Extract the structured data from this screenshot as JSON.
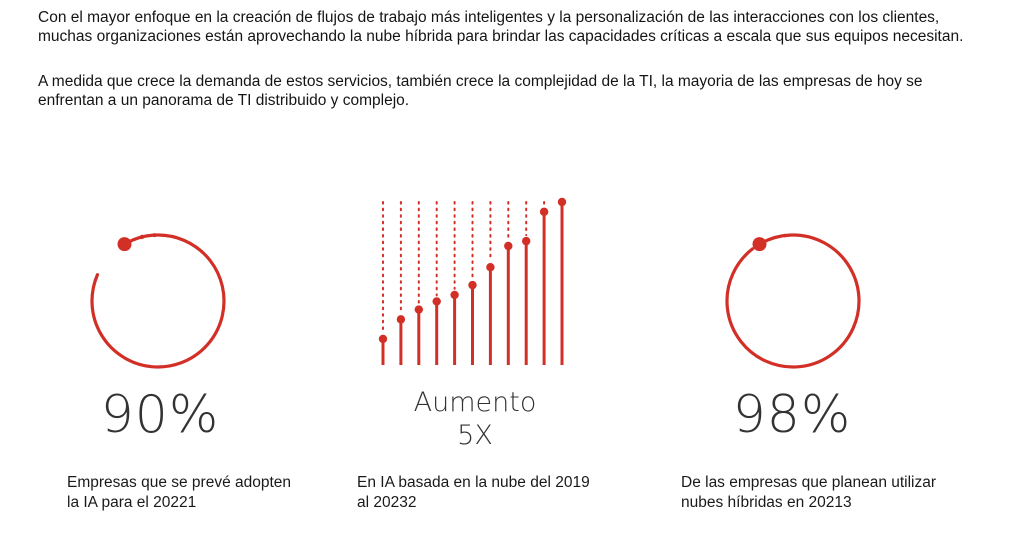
{
  "intro": {
    "paragraph_1": "Con el mayor enfoque en la creación de flujos de trabajo más inteligentes y la personalización de las interacciones con los clientes, muchas organizaciones están aprovechando la nube híbrida para brindar las capacidades críticas a escala que sus equipos necesitan.",
    "paragraph_2": "A medida que crece la demanda de estos servicios, también crece la complejidad de la TI,  la mayoria de las empresas de hoy se enfrentan a un panorama de TI distribuido y complejo."
  },
  "accent_color": "#d22f27",
  "stats": [
    {
      "value": "90%",
      "caption": "Empresas que se prevé adopten la IA para el 20221",
      "ring_fraction": 0.9
    },
    {
      "value_line_1": "Aumento",
      "value_line_2": "5X",
      "caption": "En IA basada en la nube del 2019 al 20232",
      "bar_levels": [
        0.16,
        0.28,
        0.34,
        0.39,
        0.43,
        0.49,
        0.6,
        0.73,
        0.76,
        0.94,
        1.0
      ]
    },
    {
      "value": "98%",
      "caption": "De las empresas que planean utilizar nubes híbridas en 20213",
      "ring_fraction": 0.98
    }
  ]
}
